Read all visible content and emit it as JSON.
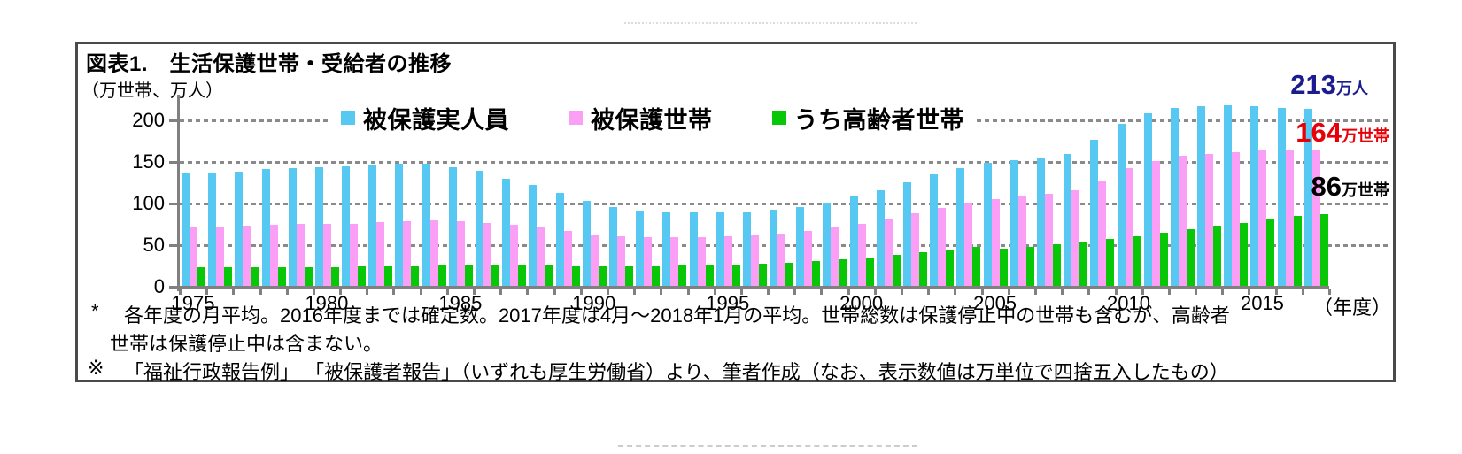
{
  "title": "図表1.　生活保護世帯・受給者の推移",
  "unit_label": "（万世帯、万人）",
  "annotations": [
    {
      "id": "persons",
      "value": "213",
      "unit": "万人",
      "color": "#1b1c90"
    },
    {
      "id": "households",
      "value": "164",
      "unit": "万世帯",
      "color": "#e60008"
    },
    {
      "id": "elderly",
      "value": "86",
      "unit": "万世帯",
      "color": "#000000"
    }
  ],
  "footnotes": {
    "note1_marker": "*",
    "note1_line1": "各年度の月平均。2016年度までは確定数。2017年度は4月～2018年1月の平均。世帯総数は保護停止中の世帯も含むが、高齢者",
    "note1_line2": "世帯は保護停止中は含まない。",
    "note2_marker": "※",
    "note2_text": "「福祉行政報告例」 「被保護者報告」（いずれも厚生労働省）より、筆者作成（なお、表示数値は万単位で四捨五入したもの）"
  },
  "chart_data": {
    "type": "bar",
    "title": "生活保護世帯・受給者の推移",
    "categories": [
      1975,
      1976,
      1977,
      1978,
      1979,
      1980,
      1981,
      1982,
      1983,
      1984,
      1985,
      1986,
      1987,
      1988,
      1989,
      1990,
      1991,
      1992,
      1993,
      1994,
      1995,
      1996,
      1997,
      1998,
      1999,
      2000,
      2001,
      2002,
      2003,
      2004,
      2005,
      2006,
      2007,
      2008,
      2009,
      2010,
      2011,
      2012,
      2013,
      2014,
      2015,
      2016,
      2017
    ],
    "series": [
      {
        "name": "被保護実人員",
        "unit": "万人",
        "color": "#57c8f2",
        "values": [
          135,
          135,
          137,
          140,
          142,
          143,
          144,
          146,
          147,
          147,
          143,
          138,
          129,
          121,
          112,
          102,
          95,
          90,
          88,
          88,
          88,
          89,
          91,
          95,
          100,
          107,
          115,
          124,
          134,
          142,
          148,
          151,
          154,
          159,
          176,
          195,
          207,
          214,
          216,
          217,
          216,
          214,
          213
        ]
      },
      {
        "name": "被保護世帯",
        "unit": "万世帯",
        "color": "#fb9ff6",
        "values": [
          71,
          71,
          72,
          73,
          74,
          75,
          75,
          77,
          78,
          79,
          78,
          76,
          73,
          70,
          66,
          62,
          60,
          59,
          59,
          59,
          60,
          61,
          63,
          66,
          70,
          75,
          81,
          87,
          94,
          100,
          104,
          108,
          111,
          115,
          127,
          141,
          150,
          156,
          159,
          161,
          163,
          164,
          164
        ]
      },
      {
        "name": "うち高齢者世帯",
        "unit": "万世帯",
        "color": "#07c707",
        "values": [
          22,
          22,
          22,
          22,
          22,
          22,
          23,
          23,
          23,
          24,
          24,
          24,
          24,
          24,
          23,
          23,
          23,
          23,
          24,
          24,
          25,
          27,
          28,
          30,
          32,
          34,
          37,
          40,
          44,
          47,
          45,
          47,
          50,
          52,
          56,
          60,
          64,
          68,
          72,
          76,
          80,
          84,
          86
        ]
      }
    ],
    "ylim": [
      0,
      200
    ],
    "y_ticks": [
      0,
      50,
      100,
      150,
      200
    ],
    "x_tick_labels": [
      "1975",
      "1980",
      "1985",
      "1990",
      "1995",
      "2000",
      "2005",
      "2010",
      "2015"
    ],
    "x_unit": "（年度）",
    "grid": "horizontal-dotted",
    "legend_position": "top-center"
  }
}
